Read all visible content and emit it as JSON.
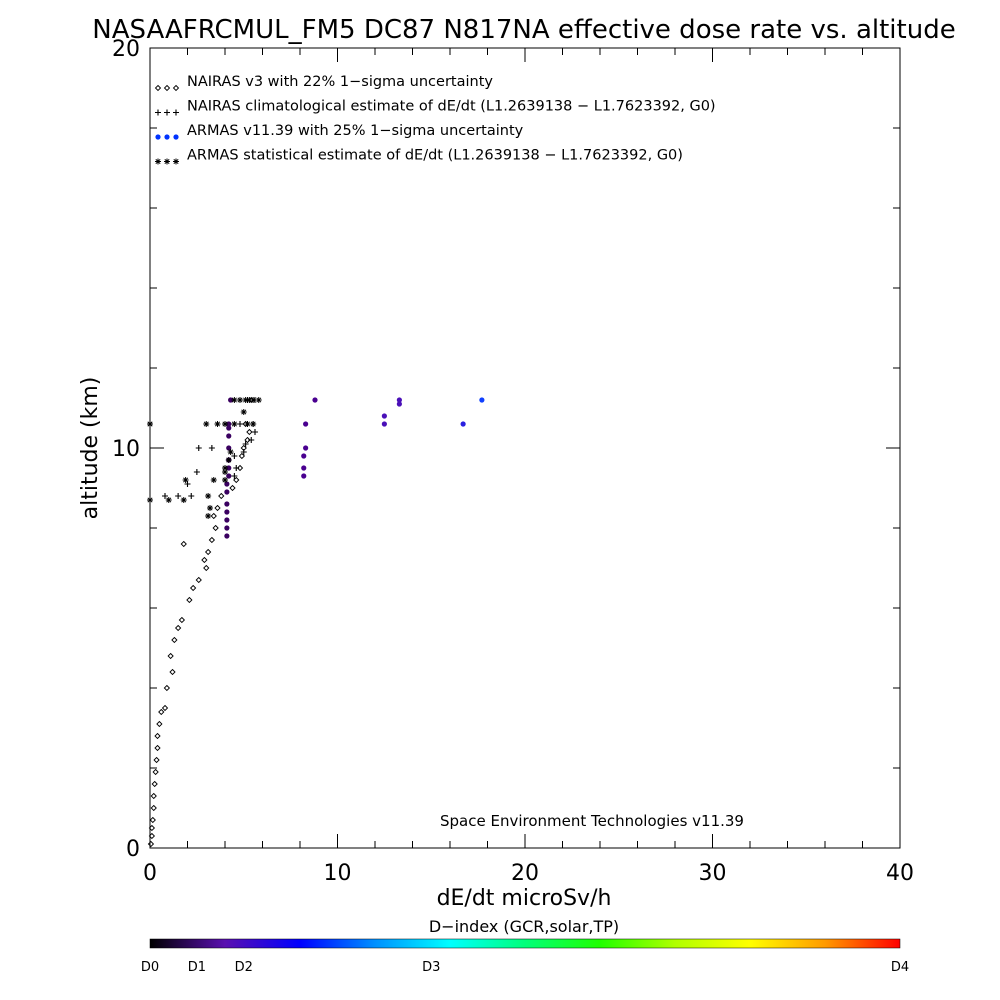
{
  "chart_data": {
    "type": "scatter",
    "title": "NASAAFRCMUL_FM5 DC87 N817NA effective dose rate vs. altitude",
    "xlabel": "dE/dt microSv/h",
    "ylabel": "altitude (km)",
    "xlim": [
      0,
      40
    ],
    "ylim": [
      0,
      20
    ],
    "x_ticks": [
      "0",
      "10",
      "20",
      "30",
      "40"
    ],
    "y_ticks": [
      "0",
      "10",
      "20"
    ],
    "legend_position": "top-left",
    "annotation": "Space Environment Technologies v11.39",
    "colorbar": {
      "title": "D−index (GCR,solar,TP)",
      "labels": [
        {
          "text": "D0",
          "value": 0
        },
        {
          "text": "D1",
          "value": 0.25
        },
        {
          "text": "D2",
          "value": 0.5
        },
        {
          "text": "D3",
          "value": 1.5
        },
        {
          "text": "D4",
          "value": 4
        }
      ],
      "stops": [
        "#000000",
        "#5a0fb0",
        "#0000ff",
        "#0090ff",
        "#00ffff",
        "#00ff7a",
        "#20ff00",
        "#b0ff00",
        "#ffff00",
        "#ff9a00",
        "#ff0000"
      ]
    },
    "series": [
      {
        "name": "NAIRAS v3 with 22% 1−sigma uncertainty",
        "legend_symbol": "◇◇◇",
        "marker": "diamond",
        "color": "#000000",
        "points": [
          [
            0.05,
            0.1
          ],
          [
            0.1,
            0.3
          ],
          [
            0.1,
            0.5
          ],
          [
            0.15,
            0.7
          ],
          [
            0.2,
            1.0
          ],
          [
            0.2,
            1.3
          ],
          [
            0.25,
            1.6
          ],
          [
            0.3,
            1.9
          ],
          [
            0.35,
            2.2
          ],
          [
            0.4,
            2.5
          ],
          [
            0.4,
            2.8
          ],
          [
            0.5,
            3.1
          ],
          [
            0.6,
            3.4
          ],
          [
            0.8,
            3.5
          ],
          [
            0.9,
            4.0
          ],
          [
            1.2,
            4.4
          ],
          [
            1.1,
            4.8
          ],
          [
            1.3,
            5.2
          ],
          [
            1.5,
            5.5
          ],
          [
            1.7,
            5.7
          ],
          [
            2.1,
            6.2
          ],
          [
            2.3,
            6.5
          ],
          [
            2.6,
            6.7
          ],
          [
            3.0,
            7.0
          ],
          [
            2.9,
            7.2
          ],
          [
            3.1,
            7.4
          ],
          [
            1.8,
            7.6
          ],
          [
            3.3,
            7.7
          ],
          [
            3.5,
            8.0
          ],
          [
            3.4,
            8.3
          ],
          [
            3.6,
            8.5
          ],
          [
            3.8,
            8.8
          ],
          [
            4.4,
            9.0
          ],
          [
            4.6,
            9.2
          ],
          [
            4.8,
            9.5
          ],
          [
            4.9,
            9.8
          ],
          [
            5.0,
            10.0
          ],
          [
            5.2,
            10.2
          ],
          [
            5.3,
            10.4
          ],
          [
            5.1,
            10.6
          ],
          [
            5.4,
            11.2
          ]
        ]
      },
      {
        "name": "NAIRAS climatological estimate of dE/dt (L1.2639138 − L1.7623392, G0)",
        "legend_symbol": "+++",
        "marker": "plus",
        "color": "#000000",
        "points": [
          [
            0.8,
            8.8
          ],
          [
            1.5,
            8.8
          ],
          [
            2.2,
            8.8
          ],
          [
            2.0,
            9.1
          ],
          [
            2.5,
            9.4
          ],
          [
            2.6,
            10.0
          ],
          [
            3.3,
            10.0
          ],
          [
            4.5,
            9.3
          ],
          [
            4.6,
            9.5
          ],
          [
            4.5,
            9.8
          ],
          [
            5.0,
            9.9
          ],
          [
            5.1,
            10.1
          ],
          [
            5.4,
            10.2
          ],
          [
            5.6,
            10.4
          ],
          [
            4.8,
            10.6
          ],
          [
            5.5,
            10.6
          ],
          [
            5.2,
            11.2
          ],
          [
            5.6,
            11.2
          ]
        ]
      },
      {
        "name": "ARMAS v11.39 with 25% 1−sigma uncertainty",
        "legend_symbol": "●●●",
        "marker": "dot",
        "color": "#0033ff",
        "points": [
          [
            4.1,
            7.8
          ],
          [
            4.1,
            8.0
          ],
          [
            4.1,
            8.2
          ],
          [
            4.1,
            8.4
          ],
          [
            4.1,
            8.6
          ],
          [
            4.1,
            8.9
          ],
          [
            4.1,
            9.1
          ],
          [
            4.2,
            9.3
          ],
          [
            4.2,
            9.5
          ],
          [
            4.2,
            9.7
          ],
          [
            4.2,
            10.0
          ],
          [
            4.2,
            10.3
          ],
          [
            4.2,
            10.5
          ],
          [
            4.2,
            10.6
          ],
          [
            4.3,
            11.2
          ],
          [
            8.2,
            9.3
          ],
          [
            8.2,
            9.5
          ],
          [
            8.2,
            9.8
          ],
          [
            8.3,
            10.0
          ],
          [
            8.3,
            10.6
          ],
          [
            8.8,
            11.2
          ],
          [
            12.5,
            10.6
          ],
          [
            12.5,
            10.8
          ],
          [
            13.3,
            11.1
          ],
          [
            13.3,
            11.2
          ],
          [
            16.7,
            10.6
          ],
          [
            17.7,
            11.2
          ]
        ],
        "colors": [
          "#3a0060",
          "#3a0060",
          "#3a0060",
          "#3a0060",
          "#3a0060",
          "#3a0060",
          "#3a0060",
          "#3a0060",
          "#3a0060",
          "#3a0060",
          "#3a0060",
          "#3a0060",
          "#3a0060",
          "#3a0060",
          "#3a0060",
          "#4a0090",
          "#4a0090",
          "#4a0090",
          "#4a0090",
          "#4a0090",
          "#4a0090",
          "#4a10b8",
          "#4a10b8",
          "#4a10b8",
          "#4a10b8",
          "#2a20e0",
          "#1040ff"
        ]
      },
      {
        "name": "ARMAS statistical estimate of dE/dt (L1.2639138 − L1.7623392, G0)",
        "legend_symbol": "∗∗∗",
        "marker": "asterisk",
        "color": "#000000",
        "points": [
          [
            0.0,
            10.6
          ],
          [
            0.0,
            8.7
          ],
          [
            1.0,
            8.7
          ],
          [
            1.8,
            8.7
          ],
          [
            1.9,
            9.2
          ],
          [
            3.1,
            8.3
          ],
          [
            3.2,
            8.5
          ],
          [
            3.1,
            8.8
          ],
          [
            3.4,
            9.2
          ],
          [
            4.0,
            9.2
          ],
          [
            4.0,
            9.4
          ],
          [
            4.0,
            9.5
          ],
          [
            4.2,
            9.7
          ],
          [
            4.3,
            9.9
          ],
          [
            4.5,
            10.6
          ],
          [
            5.0,
            10.9
          ],
          [
            4.5,
            11.2
          ],
          [
            4.8,
            11.2
          ],
          [
            5.1,
            11.2
          ],
          [
            5.3,
            11.2
          ],
          [
            5.5,
            11.2
          ],
          [
            5.8,
            11.2
          ],
          [
            3.0,
            10.6
          ],
          [
            3.6,
            10.6
          ],
          [
            4.0,
            10.6
          ],
          [
            5.2,
            10.6
          ],
          [
            5.5,
            10.6
          ],
          [
            0.0,
            10.6
          ]
        ]
      }
    ]
  }
}
